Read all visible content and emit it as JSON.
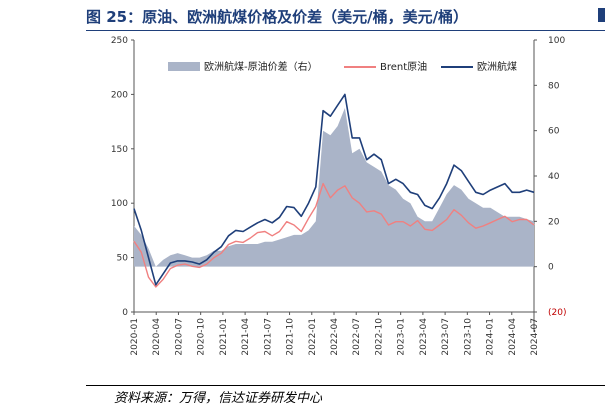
{
  "title": "图 25：原油、欧洲航煤价格及价差（美元/桶，美元/桶）",
  "source": "资料来源：万得，信达证券研发中心",
  "chart_data": {
    "type": "line",
    "title": "原油、欧洲航煤价格及价差（美元/桶，美元/桶）",
    "y_left": {
      "min": 0,
      "max": 250,
      "ticks": [
        "0",
        "50",
        "100",
        "150",
        "200",
        "250"
      ]
    },
    "y_right": {
      "min": -20,
      "max": 100,
      "ticks": [
        "(20)",
        "0",
        "20",
        "40",
        "60",
        "80",
        "100"
      ]
    },
    "x_ticks": [
      "2020-01",
      "2020-04",
      "2020-07",
      "2020-10",
      "2021-01",
      "2021-04",
      "2021-07",
      "2021-10",
      "2022-01",
      "2022-04",
      "2022-07",
      "2022-10",
      "2023-01",
      "2023-04",
      "2023-07",
      "2023-10",
      "2024-01",
      "2024-04",
      "2024-07"
    ],
    "legend": [
      "欧洲航煤-原油价差（右）",
      "Brent原油",
      "欧洲航煤"
    ],
    "colors": {
      "spread": "#aab4c8",
      "brent": "#f08080",
      "jet": "#1f3f7a"
    },
    "x": [
      "2020-01",
      "2020-02",
      "2020-03",
      "2020-04",
      "2020-05",
      "2020-06",
      "2020-07",
      "2020-08",
      "2020-09",
      "2020-10",
      "2020-11",
      "2020-12",
      "2021-01",
      "2021-02",
      "2021-03",
      "2021-04",
      "2021-05",
      "2021-06",
      "2021-07",
      "2021-08",
      "2021-09",
      "2021-10",
      "2021-11",
      "2021-12",
      "2022-01",
      "2022-02",
      "2022-03",
      "2022-04",
      "2022-05",
      "2022-06",
      "2022-07",
      "2022-08",
      "2022-09",
      "2022-10",
      "2022-11",
      "2022-12",
      "2023-01",
      "2023-02",
      "2023-03",
      "2023-04",
      "2023-05",
      "2023-06",
      "2023-07",
      "2023-08",
      "2023-09",
      "2023-10",
      "2023-11",
      "2023-12",
      "2024-01",
      "2024-02",
      "2024-03",
      "2024-04",
      "2024-05",
      "2024-06",
      "2024-07",
      "2024-08"
    ],
    "series": [
      {
        "name": "欧洲航煤-原油价差（右）",
        "axis": "right",
        "values": [
          18,
          14,
          8,
          0,
          3,
          5,
          6,
          5,
          4,
          4,
          5,
          7,
          7,
          9,
          10,
          10,
          10,
          10,
          11,
          11,
          12,
          13,
          14,
          14,
          16,
          20,
          60,
          58,
          62,
          70,
          50,
          52,
          46,
          44,
          42,
          36,
          34,
          30,
          28,
          22,
          20,
          20,
          26,
          32,
          36,
          34,
          30,
          28,
          26,
          26,
          24,
          22,
          22,
          22,
          21,
          20
        ]
      },
      {
        "name": "Brent原油",
        "axis": "left",
        "values": [
          65,
          55,
          32,
          23,
          30,
          40,
          43,
          44,
          42,
          41,
          44,
          50,
          54,
          62,
          65,
          64,
          68,
          73,
          74,
          70,
          74,
          83,
          80,
          74,
          86,
          97,
          118,
          105,
          112,
          116,
          105,
          100,
          92,
          93,
          90,
          80,
          83,
          83,
          79,
          84,
          76,
          75,
          80,
          85,
          94,
          89,
          82,
          77,
          79,
          82,
          85,
          88,
          83,
          85,
          85,
          80
        ]
      },
      {
        "name": "欧洲航煤",
        "axis": "left",
        "values": [
          95,
          75,
          50,
          25,
          35,
          45,
          47,
          47,
          46,
          44,
          48,
          55,
          60,
          70,
          75,
          74,
          78,
          82,
          85,
          82,
          87,
          97,
          96,
          88,
          100,
          115,
          185,
          180,
          190,
          200,
          160,
          160,
          140,
          145,
          140,
          118,
          122,
          118,
          110,
          108,
          98,
          95,
          105,
          118,
          135,
          130,
          120,
          110,
          108,
          112,
          115,
          118,
          110,
          110,
          112,
          110
        ]
      }
    ]
  }
}
